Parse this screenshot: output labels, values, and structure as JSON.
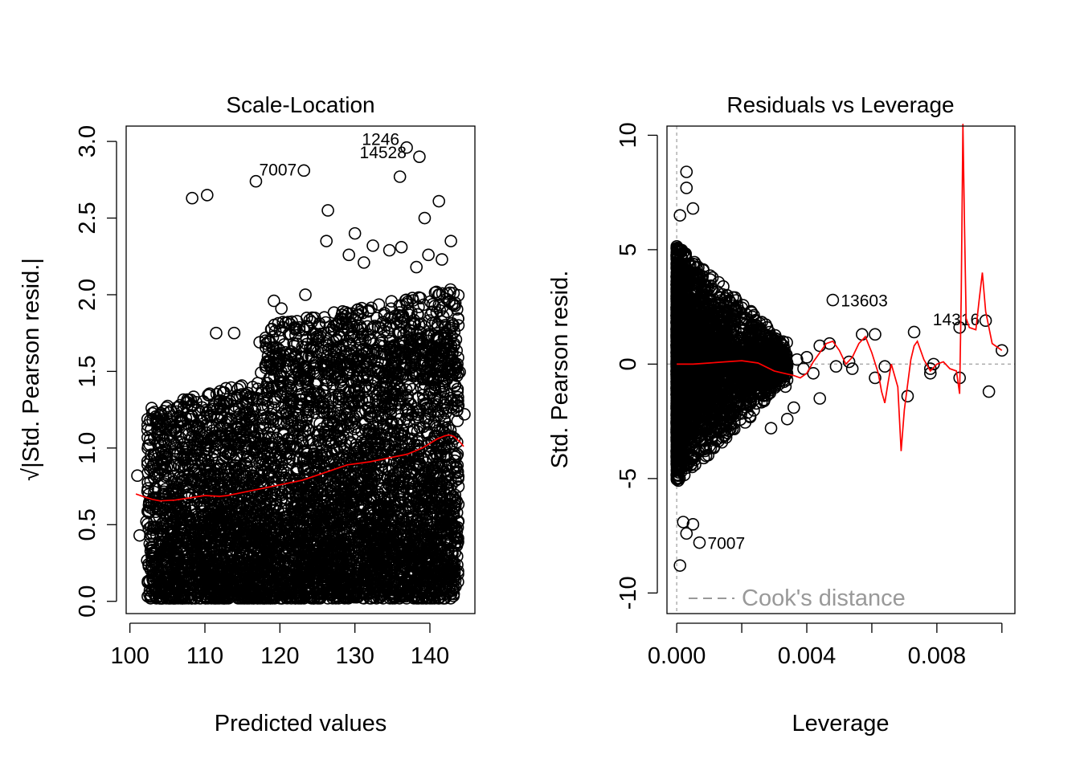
{
  "chart_data": [
    {
      "type": "scatter",
      "title": "Scale-Location",
      "xlabel": "Predicted values",
      "ylabel": "√|Std. Pearson resid.|",
      "xlim": [
        99.5,
        146
      ],
      "ylim": [
        -0.08,
        3.1
      ],
      "x_ticks": [
        100,
        110,
        120,
        130,
        140
      ],
      "y_ticks": [
        0.0,
        0.5,
        1.0,
        1.5,
        2.0,
        2.5,
        3.0
      ],
      "x_tick_labels": [
        "100",
        "110",
        "120",
        "130",
        "140"
      ],
      "y_tick_labels": [
        "0.0",
        "0.5",
        "1.0",
        "1.5",
        "2.0",
        "2.5",
        "3.0"
      ],
      "cloud": {
        "x_range": [
          102,
          144
        ],
        "y_range": [
          0.0,
          1.95
        ],
        "description_points": "dense overplotted cloud"
      },
      "outliers": [
        {
          "x": 108.3,
          "y": 2.63
        },
        {
          "x": 110.3,
          "y": 2.65
        },
        {
          "x": 116.8,
          "y": 2.74
        },
        {
          "x": 123.2,
          "y": 2.81
        },
        {
          "x": 136.0,
          "y": 2.77
        },
        {
          "x": 136.9,
          "y": 2.96
        },
        {
          "x": 138.6,
          "y": 2.9
        },
        {
          "x": 139.3,
          "y": 2.5
        },
        {
          "x": 141.2,
          "y": 2.61
        },
        {
          "x": 142.8,
          "y": 2.35
        },
        {
          "x": 126.4,
          "y": 2.55
        },
        {
          "x": 126.2,
          "y": 2.35
        },
        {
          "x": 130.0,
          "y": 2.4
        },
        {
          "x": 132.4,
          "y": 2.32
        },
        {
          "x": 134.6,
          "y": 2.29
        },
        {
          "x": 136.2,
          "y": 2.31
        },
        {
          "x": 129.2,
          "y": 2.26
        },
        {
          "x": 131.2,
          "y": 2.21
        },
        {
          "x": 139.8,
          "y": 2.26
        },
        {
          "x": 141.6,
          "y": 2.23
        },
        {
          "x": 138.2,
          "y": 2.18
        },
        {
          "x": 119.2,
          "y": 1.96
        },
        {
          "x": 120.2,
          "y": 1.91
        },
        {
          "x": 123.4,
          "y": 2.0
        },
        {
          "x": 111.5,
          "y": 1.75
        },
        {
          "x": 113.9,
          "y": 1.75
        },
        {
          "x": 117.3,
          "y": 1.69
        },
        {
          "x": 101.0,
          "y": 0.82
        },
        {
          "x": 101.3,
          "y": 0.43
        },
        {
          "x": 102.2,
          "y": 0.52
        },
        {
          "x": 144.6,
          "y": 1.22
        },
        {
          "x": 143.8,
          "y": 1.8
        },
        {
          "x": 143.5,
          "y": 0.87
        },
        {
          "x": 130.6,
          "y": 0.04
        },
        {
          "x": 139.0,
          "y": 0.05
        },
        {
          "x": 142.5,
          "y": 0.2
        }
      ],
      "labeled_points": [
        {
          "label": "7007",
          "x": 123.2,
          "y": 2.81
        },
        {
          "label": "1246",
          "x": 136.9,
          "y": 2.96
        },
        {
          "label": "14528",
          "x": 138.6,
          "y": 2.9
        }
      ],
      "smooth": {
        "color": "#ff0000",
        "x": [
          100.8,
          102,
          103,
          104,
          106,
          108,
          110,
          112,
          113,
          115,
          118,
          120,
          123,
          126,
          129,
          132,
          135,
          137,
          138,
          139,
          140,
          141,
          142,
          142.6,
          143.2,
          144,
          144.5
        ],
        "y": [
          0.7,
          0.68,
          0.665,
          0.655,
          0.66,
          0.675,
          0.69,
          0.685,
          0.69,
          0.71,
          0.74,
          0.76,
          0.79,
          0.84,
          0.89,
          0.91,
          0.94,
          0.96,
          0.98,
          1.0,
          1.03,
          1.06,
          1.08,
          1.085,
          1.075,
          1.04,
          1.01
        ]
      }
    },
    {
      "type": "scatter",
      "title": "Residuals vs Leverage",
      "xlabel": "Leverage",
      "ylabel": "Std. Pearson resid.",
      "xlim": [
        -0.0003,
        0.0104
      ],
      "ylim": [
        -10.9,
        10.4
      ],
      "x_ticks": [
        0.0,
        0.002,
        0.004,
        0.006,
        0.008,
        0.01
      ],
      "x_tick_labels": [
        "0.000",
        "",
        "0.004",
        "",
        "0.008",
        ""
      ],
      "y_ticks": [
        -10,
        -5,
        0,
        5,
        10
      ],
      "y_tick_labels": [
        "-10",
        "-5",
        "0",
        "5",
        "10"
      ],
      "cloud": {
        "description_points": "funnel of points near zero leverage",
        "x_range": [
          0.0,
          0.0045
        ],
        "y_range": [
          -4,
          6
        ]
      },
      "outliers": [
        {
          "x": 0.0003,
          "y": 8.4
        },
        {
          "x": 0.0003,
          "y": 7.7
        },
        {
          "x": 0.0005,
          "y": 6.8
        },
        {
          "x": 0.0001,
          "y": 6.5
        },
        {
          "x": 0.0002,
          "y": -6.9
        },
        {
          "x": 0.0003,
          "y": -7.4
        },
        {
          "x": 0.0005,
          "y": -7.0
        },
        {
          "x": 0.0007,
          "y": -7.8
        },
        {
          "x": 0.0001,
          "y": -8.8
        },
        {
          "x": 0.0,
          "y": -3.9
        },
        {
          "x": 0.0029,
          "y": -2.8
        },
        {
          "x": 0.0034,
          "y": -2.4
        },
        {
          "x": 0.0036,
          "y": -1.9
        },
        {
          "x": 0.0044,
          "y": -1.5
        },
        {
          "x": 0.0048,
          "y": 2.8
        },
        {
          "x": 0.0047,
          "y": 0.9
        },
        {
          "x": 0.0049,
          "y": -0.1
        },
        {
          "x": 0.0053,
          "y": 0.1
        },
        {
          "x": 0.0054,
          "y": -0.2
        },
        {
          "x": 0.0057,
          "y": 1.3
        },
        {
          "x": 0.0061,
          "y": 1.3
        },
        {
          "x": 0.0061,
          "y": -0.6
        },
        {
          "x": 0.0064,
          "y": -0.1
        },
        {
          "x": 0.0071,
          "y": -1.4
        },
        {
          "x": 0.0073,
          "y": 1.4
        },
        {
          "x": 0.0078,
          "y": -0.2
        },
        {
          "x": 0.0079,
          "y": 0.0
        },
        {
          "x": 0.0078,
          "y": -0.4
        },
        {
          "x": 0.0087,
          "y": 1.6
        },
        {
          "x": 0.0087,
          "y": -0.6
        },
        {
          "x": 0.0095,
          "y": 1.9
        },
        {
          "x": 0.0096,
          "y": -1.2
        },
        {
          "x": 0.01,
          "y": 0.6
        },
        {
          "x": 0.0044,
          "y": 0.8
        },
        {
          "x": 0.0042,
          "y": -0.4
        },
        {
          "x": 0.0039,
          "y": -0.2
        },
        {
          "x": 0.0037,
          "y": 0.2
        },
        {
          "x": 0.004,
          "y": 0.3
        }
      ],
      "labeled_points": [
        {
          "label": "13603",
          "x": 0.0048,
          "y": 2.8
        },
        {
          "label": "14316",
          "x": 0.0087,
          "y": 1.6
        },
        {
          "label": "7007",
          "x": 0.0007,
          "y": -7.8
        }
      ],
      "smooth": {
        "color": "#ff0000",
        "x": [
          0.0,
          0.0005,
          0.001,
          0.0015,
          0.002,
          0.0025,
          0.003,
          0.0033,
          0.0036,
          0.0038,
          0.004,
          0.0042,
          0.0044,
          0.0046,
          0.0048,
          0.005,
          0.0052,
          0.0054,
          0.0056,
          0.0058,
          0.006,
          0.0062,
          0.0063,
          0.0064,
          0.0065,
          0.0066,
          0.0068,
          0.0069,
          0.007,
          0.0072,
          0.0073,
          0.0074,
          0.0076,
          0.0078,
          0.008,
          0.0082,
          0.0084,
          0.0086,
          0.0087,
          0.00875,
          0.0088,
          0.00885,
          0.0089,
          0.009,
          0.0092,
          0.0093,
          0.0094,
          0.0095,
          0.0097,
          0.01
        ],
        "y": [
          0.0,
          0.0,
          0.05,
          0.1,
          0.15,
          0.05,
          -0.3,
          -0.4,
          -0.5,
          -0.6,
          -0.4,
          0.1,
          0.5,
          0.9,
          1.0,
          0.6,
          0.0,
          0.3,
          0.9,
          1.2,
          0.5,
          -0.4,
          -1.2,
          -1.7,
          -0.8,
          0.0,
          -1.0,
          -3.8,
          -2.0,
          0.2,
          0.8,
          1.0,
          0.2,
          -0.3,
          0.0,
          0.1,
          -0.2,
          -0.3,
          -1.3,
          3.0,
          10.5,
          6.0,
          2.0,
          1.6,
          1.5,
          2.8,
          4.0,
          2.3,
          0.9,
          0.6
        ]
      },
      "reference_lines": {
        "horizontal_y": 0,
        "vertical_x": 0
      },
      "legend": {
        "text": "Cook's distance",
        "placement": "bottom-left"
      }
    }
  ]
}
